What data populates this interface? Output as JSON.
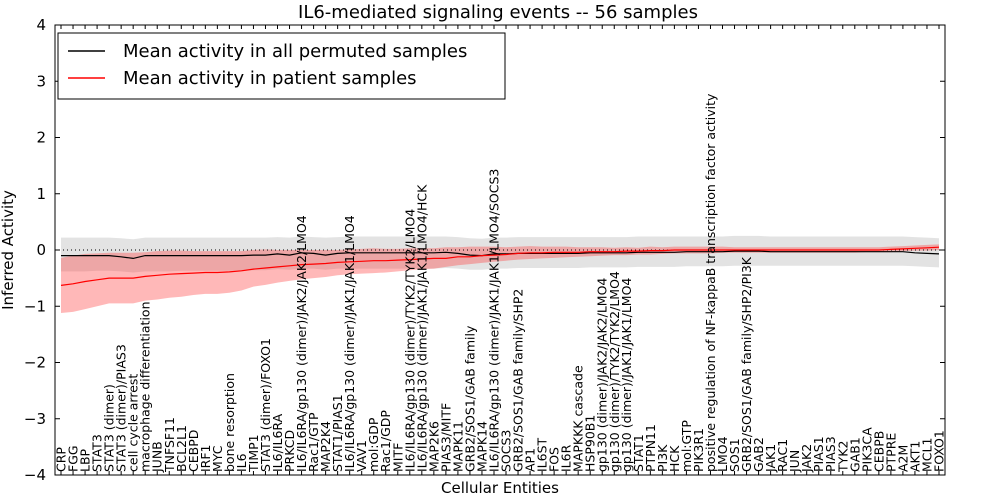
{
  "chart_data": {
    "type": "line",
    "title": "IL6-mediated signaling events -- 56 samples",
    "xlabel": "Cellular Entities",
    "ylabel": "Inferred Activity",
    "ylim": [
      -4,
      4
    ],
    "yticks": [
      -4,
      -3,
      -2,
      -1,
      0,
      1,
      2,
      3,
      4
    ],
    "reference_line": 0,
    "legend": {
      "placement": "top-left",
      "entries": [
        "Mean activity in all permuted samples",
        "Mean activity in patient samples"
      ]
    },
    "categories": [
      "CRP",
      "FGG",
      "LBP",
      "STAT3",
      "STAT3 (dimer)",
      "STAT3 (dimer)/PIAS3",
      "cell cycle arrest",
      "macrophage differentiation",
      "JUNB",
      "TNFSF11",
      "BCL2L1",
      "CEBPD",
      "IRF1",
      "MYC",
      "bone resorption",
      "IL6",
      "TIMP1",
      "STAT3 (dimer)/FOXO1",
      "IL6/IL6RA",
      "PRKCD",
      "IL6/IL6RA/gp130 (dimer)/JAK2/JAK2/LMO4",
      "Rac1/GTP",
      "MAP2K4",
      "STAT1/PIAS1",
      "IL6/IL6RA/gp130 (dimer)/JAK1/JAK1/LMO4",
      "VAV1",
      "mol:GDP",
      "Rac1/GDP",
      "MITF",
      "IL6/IL6RA/gp130 (dimer)/TYK2/TYK2/LMO4",
      "IL6/IL6RA/gp130 (dimer)/JAK1/JAK1/LMO4/HCK",
      "MAP2K6",
      "PIAS3/MITF",
      "MAPK11",
      "GRB2/SOS1/GAB family",
      "MAPK14",
      "IL6/IL6RA/gp130 (dimer)/JAK1/JAK1/LMO4/SOCS3",
      "SOCS3",
      "GRB2/SOS1/GAB family/SHP2",
      "AP1",
      "IL6ST",
      "FOS",
      "IL6R",
      "MAPKKK cascade",
      "HSP90B1",
      "gp130 (dimer)/JAK2/JAK2/LMO4",
      "gp130 (dimer)/TYK2/TYK2/LMO4",
      "gp130 (dimer)/JAK1/JAK1/LMO4",
      "STAT1",
      "PTPN11",
      "PI3K",
      "HCK",
      "mol:GTP",
      "PIK3R1",
      "positive regulation of NF-kappaB transcription factor activity",
      "LMO4",
      "SOS1",
      "GRB2/SOS1/GAB family/SHP2/PI3K",
      "GAB2",
      "JAK1",
      "RAC1",
      "JUN",
      "JAK2",
      "PIAS1",
      "PIAS3",
      "TYK2",
      "GAB1",
      "PIK3CA",
      "CEBPB",
      "PTPRE",
      "A2M",
      "AKT1",
      "MCL1",
      "FOXO1"
    ],
    "series": [
      {
        "name": "Mean activity in all permuted samples",
        "color": "#000000",
        "values": [
          -0.1,
          -0.1,
          -0.1,
          -0.1,
          -0.1,
          -0.12,
          -0.15,
          -0.1,
          -0.1,
          -0.1,
          -0.1,
          -0.1,
          -0.1,
          -0.1,
          -0.1,
          -0.1,
          -0.09,
          -0.09,
          -0.07,
          -0.09,
          -0.05,
          -0.06,
          -0.09,
          -0.06,
          -0.05,
          -0.05,
          -0.05,
          -0.05,
          -0.05,
          -0.05,
          -0.05,
          -0.05,
          -0.04,
          -0.06,
          -0.09,
          -0.1,
          -0.07,
          -0.07,
          -0.06,
          -0.06,
          -0.06,
          -0.06,
          -0.06,
          -0.06,
          -0.05,
          -0.05,
          -0.05,
          -0.05,
          -0.04,
          -0.04,
          -0.04,
          -0.04,
          -0.03,
          -0.03,
          -0.03,
          -0.03,
          -0.02,
          -0.02,
          -0.02,
          -0.03,
          -0.03,
          -0.03,
          -0.03,
          -0.03,
          -0.03,
          -0.03,
          -0.03,
          -0.03,
          -0.03,
          -0.03,
          -0.03,
          -0.05,
          -0.06,
          -0.07
        ],
        "band_lower": [
          -0.38,
          -0.38,
          -0.38,
          -0.37,
          -0.37,
          -0.38,
          -0.4,
          -0.38,
          -0.38,
          -0.38,
          -0.37,
          -0.37,
          -0.37,
          -0.37,
          -0.37,
          -0.37,
          -0.36,
          -0.36,
          -0.34,
          -0.35,
          -0.33,
          -0.33,
          -0.35,
          -0.33,
          -0.33,
          -0.33,
          -0.33,
          -0.33,
          -0.33,
          -0.33,
          -0.33,
          -0.33,
          -0.32,
          -0.33,
          -0.35,
          -0.35,
          -0.33,
          -0.33,
          -0.32,
          -0.32,
          -0.32,
          -0.32,
          -0.32,
          -0.32,
          -0.31,
          -0.31,
          -0.31,
          -0.31,
          -0.3,
          -0.3,
          -0.3,
          -0.3,
          -0.29,
          -0.29,
          -0.29,
          -0.29,
          -0.28,
          -0.28,
          -0.28,
          -0.28,
          -0.28,
          -0.28,
          -0.28,
          -0.28,
          -0.28,
          -0.28,
          -0.28,
          -0.28,
          -0.28,
          -0.28,
          -0.28,
          -0.29,
          -0.3,
          -0.31
        ],
        "band_upper": [
          0.22,
          0.22,
          0.22,
          0.22,
          0.22,
          0.21,
          0.19,
          0.22,
          0.22,
          0.22,
          0.22,
          0.22,
          0.22,
          0.22,
          0.22,
          0.22,
          0.22,
          0.22,
          0.23,
          0.22,
          0.24,
          0.23,
          0.22,
          0.23,
          0.24,
          0.24,
          0.24,
          0.24,
          0.24,
          0.24,
          0.24,
          0.24,
          0.24,
          0.23,
          0.21,
          0.2,
          0.22,
          0.22,
          0.23,
          0.23,
          0.23,
          0.23,
          0.23,
          0.23,
          0.23,
          0.23,
          0.23,
          0.23,
          0.24,
          0.24,
          0.24,
          0.24,
          0.24,
          0.24,
          0.24,
          0.24,
          0.25,
          0.25,
          0.25,
          0.24,
          0.24,
          0.24,
          0.24,
          0.24,
          0.24,
          0.24,
          0.24,
          0.24,
          0.24,
          0.24,
          0.24,
          0.23,
          0.22,
          0.21
        ]
      },
      {
        "name": "Mean activity in patient samples",
        "color": "#ff0000",
        "values": [
          -0.63,
          -0.6,
          -0.56,
          -0.53,
          -0.5,
          -0.5,
          -0.5,
          -0.47,
          -0.45,
          -0.43,
          -0.42,
          -0.41,
          -0.4,
          -0.4,
          -0.39,
          -0.37,
          -0.34,
          -0.32,
          -0.3,
          -0.28,
          -0.26,
          -0.25,
          -0.24,
          -0.22,
          -0.21,
          -0.2,
          -0.19,
          -0.19,
          -0.18,
          -0.17,
          -0.16,
          -0.15,
          -0.15,
          -0.12,
          -0.12,
          -0.1,
          -0.09,
          -0.08,
          -0.06,
          -0.05,
          -0.05,
          -0.04,
          -0.04,
          -0.04,
          -0.03,
          -0.03,
          -0.03,
          -0.02,
          -0.02,
          -0.01,
          -0.01,
          0.0,
          0.0,
          0.0,
          0.0,
          0.0,
          0.0,
          0.0,
          0.0,
          0.0,
          0.0,
          0.0,
          0.0,
          0.0,
          0.0,
          0.0,
          0.0,
          0.0,
          0.0,
          0.01,
          0.02,
          0.03,
          0.04,
          0.05
        ],
        "band_lower": [
          -1.12,
          -1.1,
          -1.05,
          -1.0,
          -0.95,
          -0.95,
          -0.95,
          -0.9,
          -0.88,
          -0.85,
          -0.83,
          -0.8,
          -0.78,
          -0.78,
          -0.76,
          -0.72,
          -0.65,
          -0.62,
          -0.58,
          -0.55,
          -0.52,
          -0.5,
          -0.48,
          -0.45,
          -0.43,
          -0.42,
          -0.41,
          -0.4,
          -0.38,
          -0.36,
          -0.34,
          -0.33,
          -0.3,
          -0.27,
          -0.25,
          -0.23,
          -0.21,
          -0.19,
          -0.17,
          -0.16,
          -0.15,
          -0.14,
          -0.13,
          -0.12,
          -0.11,
          -0.1,
          -0.09,
          -0.09,
          -0.08,
          -0.08,
          -0.07,
          -0.06,
          -0.06,
          -0.06,
          -0.06,
          -0.05,
          -0.05,
          -0.05,
          -0.05,
          -0.05,
          -0.05,
          -0.05,
          -0.05,
          -0.05,
          -0.05,
          -0.05,
          -0.05,
          -0.04,
          -0.04,
          -0.04,
          -0.02,
          -0.01,
          -0.01,
          0.0
        ],
        "band_upper": [
          -0.14,
          -0.1,
          -0.07,
          -0.06,
          -0.05,
          -0.05,
          -0.05,
          -0.04,
          -0.02,
          -0.01,
          -0.01,
          -0.02,
          -0.02,
          -0.02,
          -0.02,
          -0.02,
          0.0,
          0.01,
          0.0,
          0.0,
          0.0,
          0.0,
          0.0,
          0.0,
          0.01,
          0.02,
          0.03,
          0.02,
          0.02,
          0.03,
          0.03,
          0.03,
          0.05,
          0.05,
          0.06,
          0.06,
          0.06,
          0.05,
          0.06,
          0.07,
          0.06,
          0.06,
          0.06,
          0.05,
          0.05,
          0.05,
          0.04,
          0.05,
          0.04,
          0.06,
          0.05,
          0.06,
          0.06,
          0.06,
          0.06,
          0.06,
          0.05,
          0.05,
          0.05,
          0.05,
          0.05,
          0.05,
          0.05,
          0.05,
          0.05,
          0.05,
          0.05,
          0.05,
          0.05,
          0.06,
          0.07,
          0.08,
          0.09,
          0.1
        ]
      }
    ]
  }
}
